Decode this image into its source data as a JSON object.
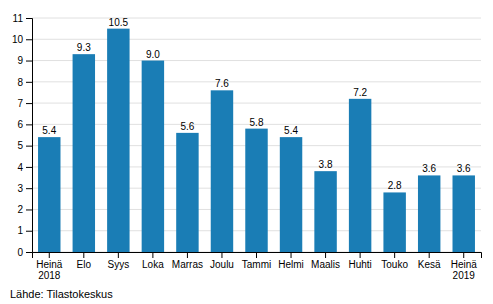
{
  "chart_data": {
    "type": "bar",
    "categories": [
      "Heinä\n2018",
      "Elo",
      "Syys",
      "Loka",
      "Marras",
      "Joulu",
      "Tammi",
      "Helmi",
      "Maalis",
      "Huhti",
      "Touko",
      "Kesä",
      "Heinä\n2019"
    ],
    "values": [
      5.4,
      9.3,
      10.5,
      9.0,
      5.6,
      7.6,
      5.8,
      5.4,
      3.8,
      7.2,
      2.8,
      3.6,
      3.6
    ],
    "value_labels": [
      "5.4",
      "9.3",
      "10.5",
      "9.0",
      "5.6",
      "7.6",
      "5.8",
      "5.4",
      "3.8",
      "7.2",
      "2.8",
      "3.6",
      "3.6"
    ],
    "data_labels": true,
    "color": "#1a7db5",
    "ylim": [
      0,
      11
    ],
    "yticks": [
      0,
      1,
      2,
      3,
      4,
      5,
      6,
      7,
      8,
      9,
      10,
      11
    ],
    "grid": true,
    "annotations": [
      "Lähde: Tilastokeskus"
    ]
  }
}
